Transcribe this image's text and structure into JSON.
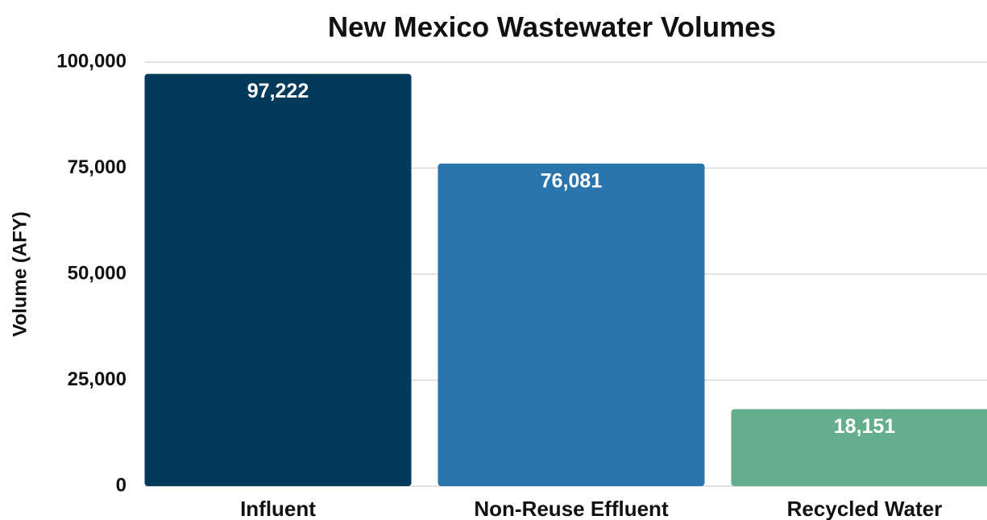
{
  "chart_data": {
    "type": "bar",
    "title": "New Mexico Wastewater Volumes",
    "y_label": "Volume (AFY)",
    "categories": [
      "Influent",
      "Non-Reuse Effluent",
      "Recycled Water"
    ],
    "values": [
      97222,
      76081,
      18151
    ],
    "value_labels": [
      "97,222",
      "76,081",
      "18,151"
    ],
    "colors": [
      "#033a5a",
      "#2a75ae",
      "#64ae8c"
    ],
    "ylim": [
      0,
      100000
    ],
    "yticks": [
      0,
      {
        "value": 25000,
        "label": "25,000"
      },
      {
        "value": 50000,
        "label": "50,000"
      },
      {
        "value": 75000,
        "label": "75,000"
      },
      {
        "value": 100000,
        "label": "100,000"
      }
    ],
    "grid": true
  }
}
